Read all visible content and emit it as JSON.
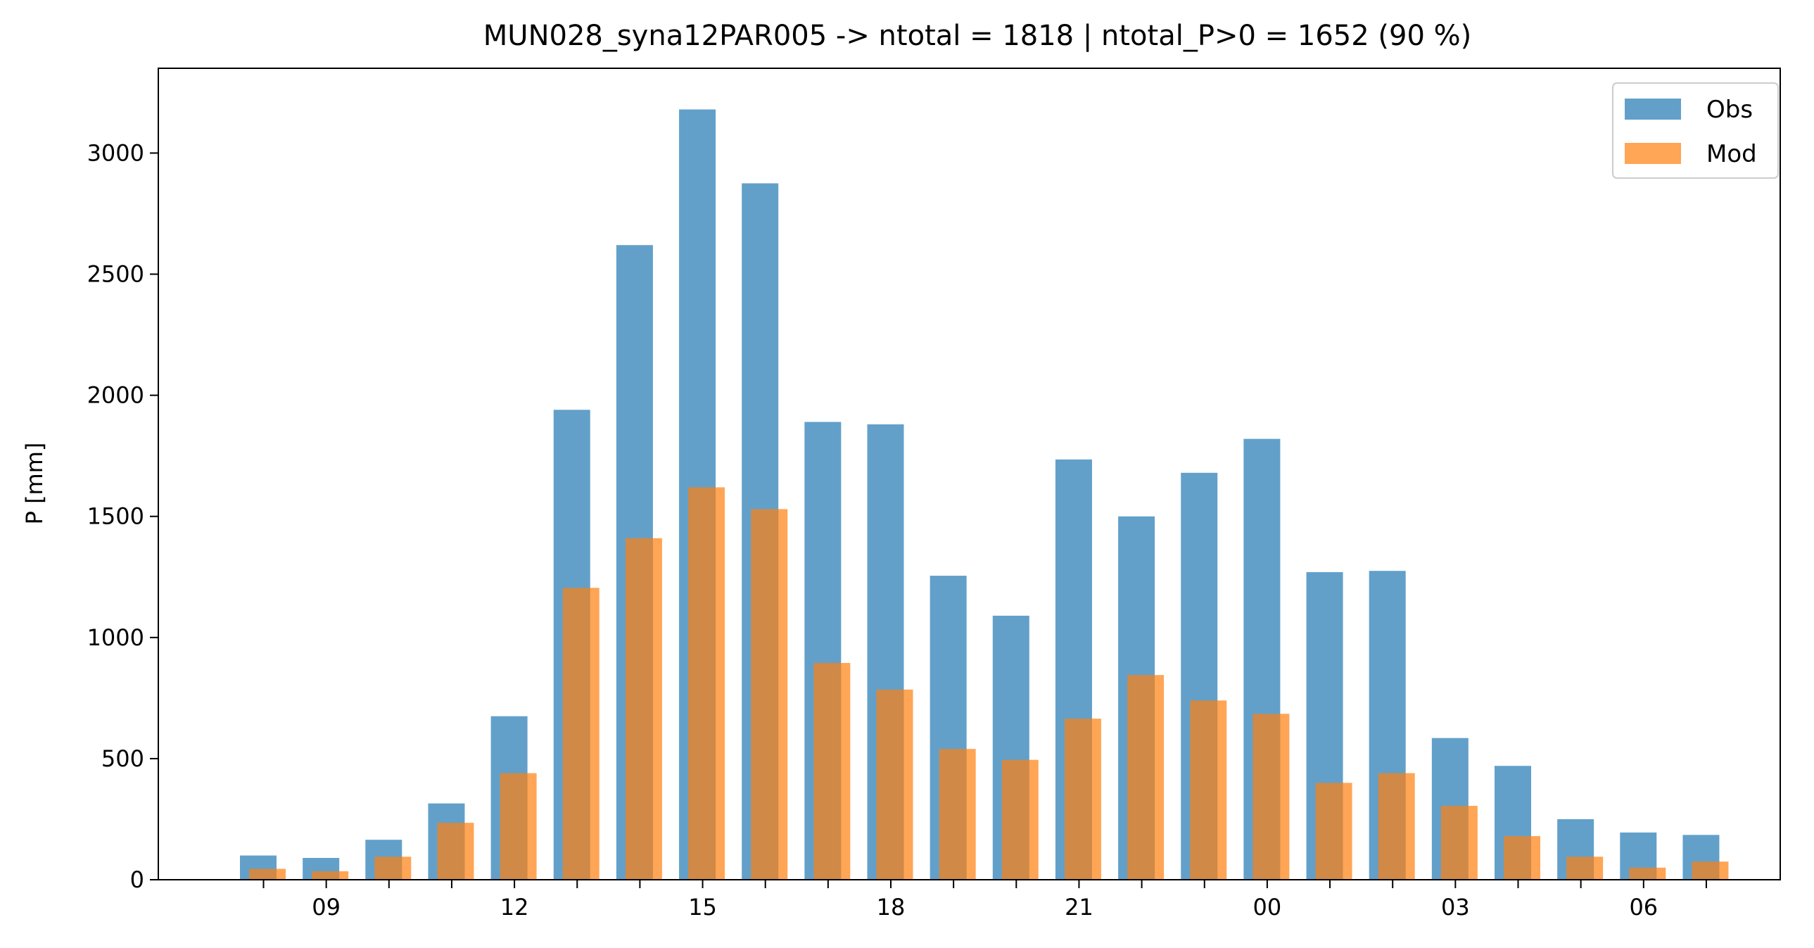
{
  "chart_data": {
    "type": "bar",
    "title": "MUN028_syna12PAR005 -> ntotal = 1818 | ntotal_P>0 = 1652 (90 %)",
    "ylabel": "P [mm]",
    "xlabel": "",
    "ylim": [
      0,
      3350
    ],
    "yticks": [
      0,
      500,
      1000,
      1500,
      2000,
      2500,
      3000
    ],
    "ytick_labels": [
      "0",
      "500",
      "1000",
      "1500",
      "2000",
      "2500",
      "3000"
    ],
    "hours": [
      8,
      9,
      10,
      11,
      12,
      13,
      14,
      15,
      16,
      17,
      18,
      19,
      20,
      21,
      22,
      23,
      0,
      1,
      2,
      3,
      4,
      5,
      6,
      7
    ],
    "xtick_labels": [
      {
        "index": 1,
        "label": "09"
      },
      {
        "index": 4,
        "label": "12"
      },
      {
        "index": 7,
        "label": "15"
      },
      {
        "index": 10,
        "label": "18"
      },
      {
        "index": 13,
        "label": "21"
      },
      {
        "index": 16,
        "label": "00"
      },
      {
        "index": 19,
        "label": "03"
      },
      {
        "index": 22,
        "label": "06"
      }
    ],
    "series": [
      {
        "name": "Obs",
        "color": "#1f77b4",
        "opacity": 0.7,
        "values": [
          100,
          90,
          165,
          315,
          675,
          1940,
          2620,
          3180,
          2875,
          1890,
          1880,
          1255,
          1090,
          1735,
          1500,
          1680,
          1820,
          1270,
          1275,
          585,
          470,
          250,
          195,
          185
        ]
      },
      {
        "name": "Mod",
        "color": "#ff7f0e",
        "opacity": 0.7,
        "values": [
          45,
          35,
          95,
          235,
          440,
          1205,
          1410,
          1620,
          1530,
          895,
          785,
          540,
          495,
          665,
          845,
          740,
          685,
          400,
          440,
          305,
          180,
          95,
          50,
          75
        ]
      }
    ],
    "legend_position": "top-right",
    "grid": false
  }
}
